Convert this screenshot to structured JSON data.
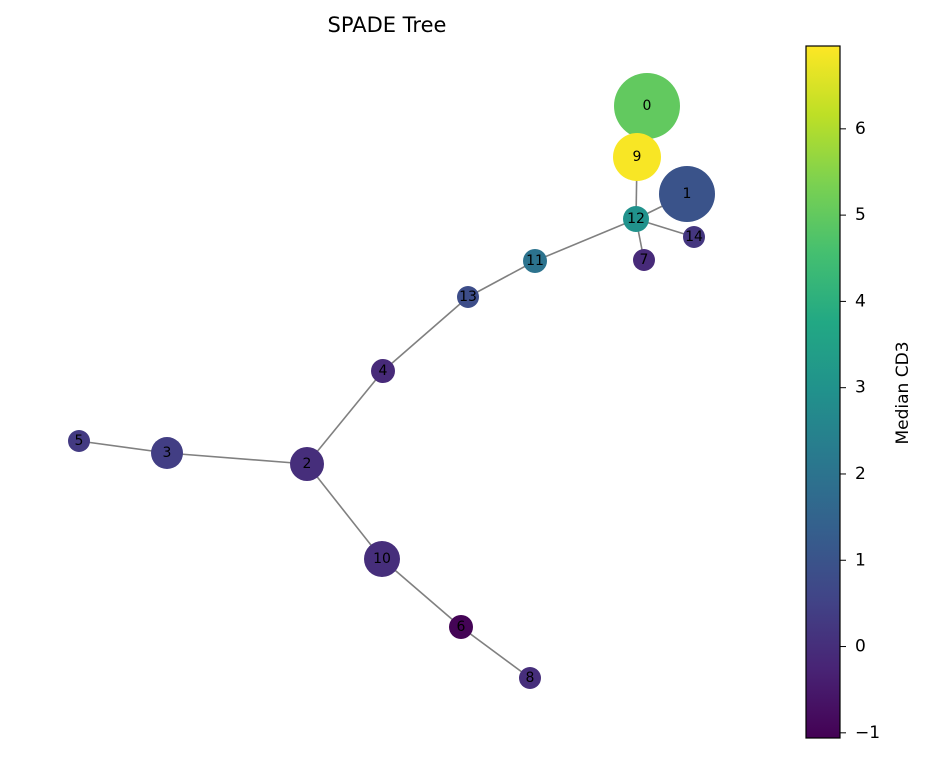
{
  "chart_data": {
    "type": "network",
    "title": "SPADE Tree",
    "colormap": "viridis",
    "nodes": [
      {
        "label": "0",
        "value": 5.0
      },
      {
        "label": "1",
        "value": 1.0
      },
      {
        "label": "2",
        "value": 0.0
      },
      {
        "label": "3",
        "value": 0.4
      },
      {
        "label": "4",
        "value": -0.1
      },
      {
        "label": "5",
        "value": 0.3
      },
      {
        "label": "6",
        "value": -1.0
      },
      {
        "label": "7",
        "value": -0.1
      },
      {
        "label": "8",
        "value": 0.0
      },
      {
        "label": "9",
        "value": 6.9
      },
      {
        "label": "10",
        "value": 0.0
      },
      {
        "label": "11",
        "value": 2.0
      },
      {
        "label": "12",
        "value": 3.0
      },
      {
        "label": "13",
        "value": 0.8
      },
      {
        "label": "14",
        "value": 0.2
      }
    ],
    "edges": [
      [
        5,
        3
      ],
      [
        3,
        2
      ],
      [
        2,
        4
      ],
      [
        2,
        10
      ],
      [
        10,
        6
      ],
      [
        6,
        8
      ],
      [
        4,
        13
      ],
      [
        13,
        11
      ],
      [
        11,
        12
      ],
      [
        12,
        9
      ],
      [
        12,
        1
      ],
      [
        12,
        14
      ],
      [
        12,
        7
      ],
      [
        9,
        0
      ]
    ],
    "colorbar": {
      "label": "Median CD3",
      "ylim": [
        -1.06,
        6.96
      ],
      "yticks": [
        {
          "value": -1,
          "label": "−1"
        },
        0,
        1,
        2,
        3,
        4,
        5,
        6
      ]
    }
  }
}
